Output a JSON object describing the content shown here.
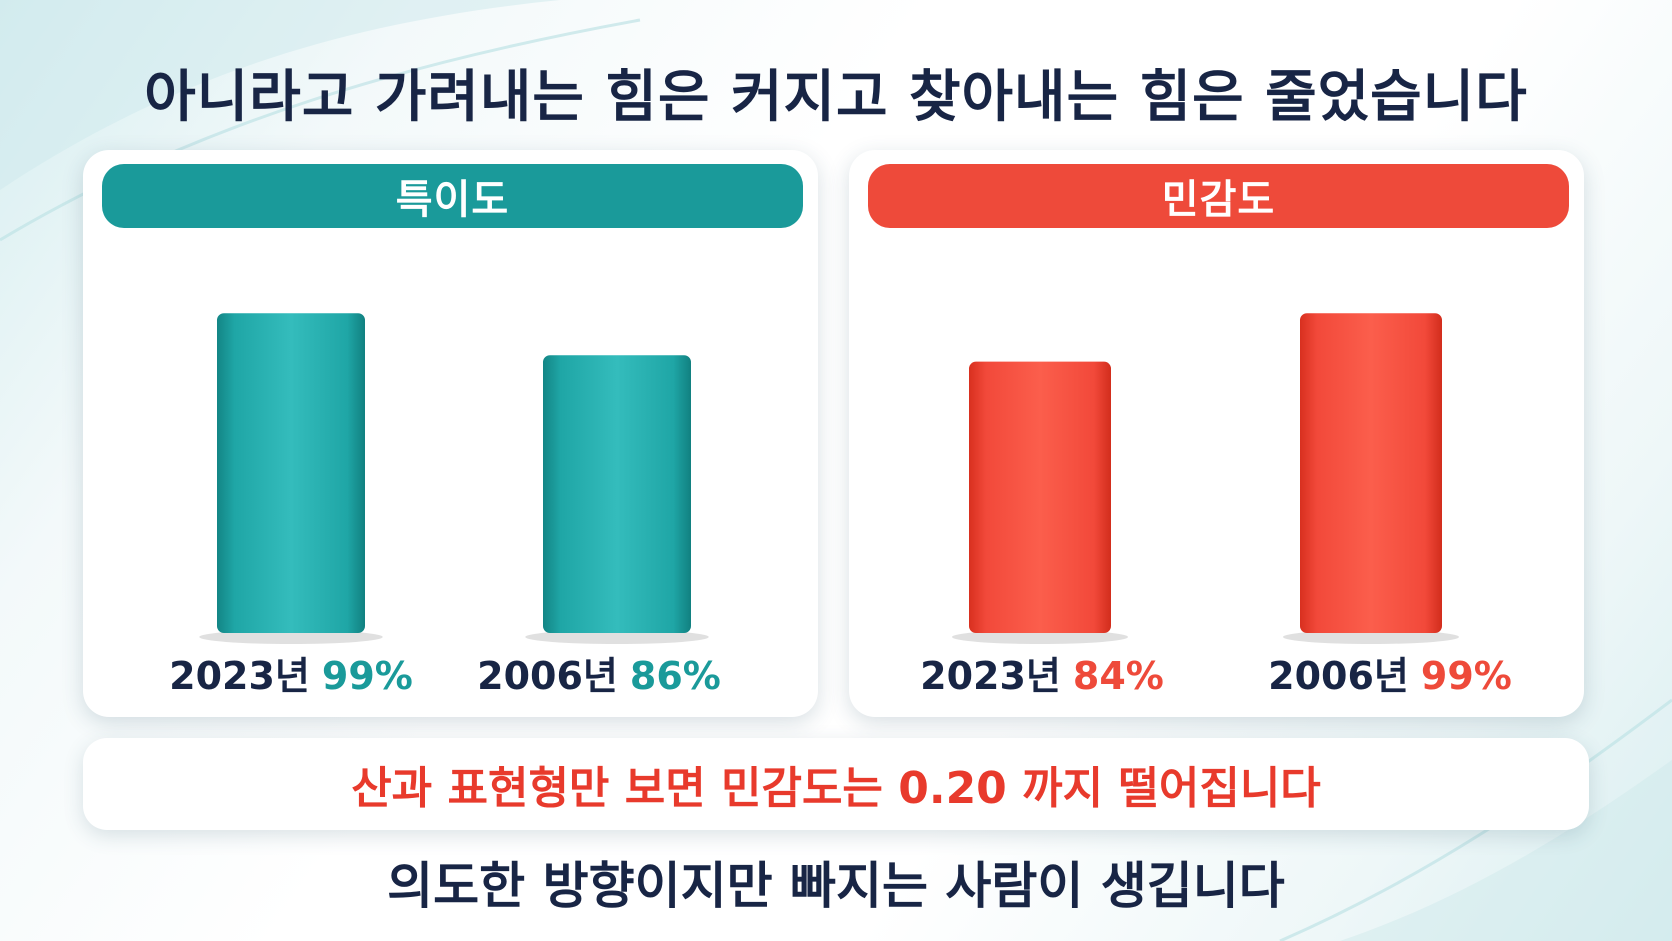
{
  "title": "아니라고 가려내는 힘은 커지고 찾아내는 힘은 줄었습니다",
  "colors": {
    "specificity": "#1a9a9a",
    "sensitivity": "#ee4a3a",
    "text": "#182545"
  },
  "chart_data": [
    {
      "type": "bar",
      "title": "특이도",
      "categories": [
        "2023년",
        "2006년"
      ],
      "values": [
        99,
        86
      ],
      "value_labels": [
        "99%",
        "86%"
      ],
      "color": "#1a9a9a",
      "ylim": [
        0,
        100
      ],
      "grid": false
    },
    {
      "type": "bar",
      "title": "민감도",
      "categories": [
        "2023년",
        "2006년"
      ],
      "values": [
        84,
        99
      ],
      "value_labels": [
        "84%",
        "99%"
      ],
      "color": "#ee4a3a",
      "ylim": [
        0,
        100
      ],
      "grid": false
    }
  ],
  "note": "산과 표현형만 보면 민감도는 0.20 까지 떨어집니다",
  "footer": "의도한 방향이지만 빠지는 사람이 생깁니다"
}
